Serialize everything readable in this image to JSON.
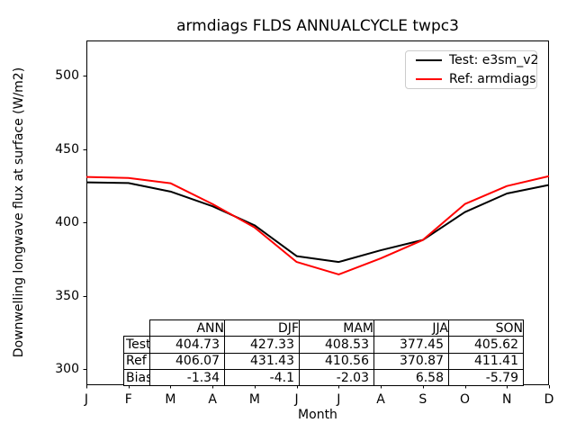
{
  "chart": {
    "title": "armdiags FLDS ANNUALCYCLE twpc3",
    "xlabel": "Month",
    "ylabel": "Downwelling longwave flux at surface (W/m2)"
  },
  "chart_data": {
    "type": "line",
    "title": "armdiags FLDS ANNUALCYCLE twpc3",
    "xlabel": "Month",
    "ylabel": "Downwelling longwave flux at surface (W/m2)",
    "categories": [
      "J",
      "F",
      "M",
      "A",
      "M",
      "J",
      "J",
      "A",
      "S",
      "O",
      "N",
      "D"
    ],
    "series": [
      {
        "name": "Test: e3sm_v2",
        "color": "#000000",
        "values": [
          427.3,
          426.8,
          421.0,
          411.0,
          398.0,
          377.0,
          373.0,
          381.0,
          388.0,
          407.0,
          419.7,
          425.5
        ]
      },
      {
        "name": "Ref: armdiags",
        "color": "#ff0000",
        "values": [
          431.0,
          430.3,
          426.7,
          412.5,
          396.5,
          373.0,
          364.5,
          375.5,
          388.0,
          412.5,
          424.8,
          431.5
        ]
      }
    ],
    "yticks": [
      300,
      350,
      400,
      450,
      500
    ],
    "ylim": [
      289,
      524
    ],
    "grid": false,
    "legend_position": "upper right"
  },
  "table": {
    "columns": [
      "ANN",
      "DJF",
      "MAM",
      "JJA",
      "SON"
    ],
    "rows": [
      {
        "label": "Test",
        "values": [
          "404.73",
          "427.33",
          "408.53",
          "377.45",
          "405.62"
        ]
      },
      {
        "label": "Ref",
        "values": [
          "406.07",
          "431.43",
          "410.56",
          "370.87",
          "411.41"
        ]
      },
      {
        "label": "Bias",
        "values": [
          "-1.34",
          "-4.1",
          "-2.03",
          "6.58",
          "-5.79"
        ]
      }
    ]
  }
}
